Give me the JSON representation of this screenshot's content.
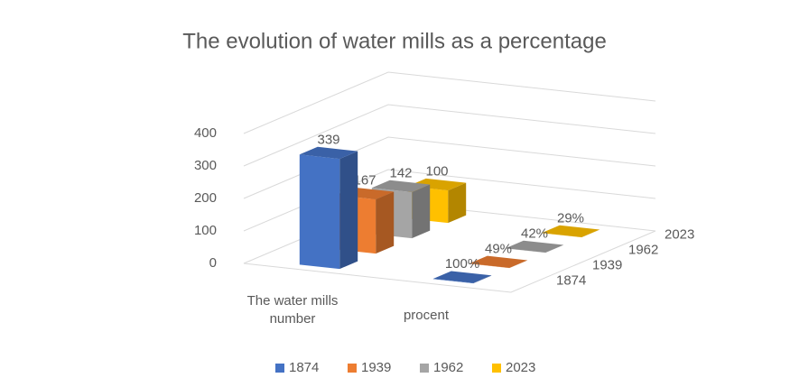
{
  "chart_data": {
    "type": "bar3d",
    "title": "The evolution of water mills as a percentage",
    "categories": [
      "The water mills number",
      "procent"
    ],
    "series": [
      {
        "name": "1874",
        "color": "#4472c4",
        "values": [
          339,
          1
        ],
        "value_labels": [
          "339",
          "100%"
        ]
      },
      {
        "name": "1939",
        "color": "#ed7d31",
        "values": [
          167,
          0.49
        ],
        "value_labels": [
          "167",
          "49%"
        ]
      },
      {
        "name": "1962",
        "color": "#a5a5a5",
        "values": [
          142,
          0.42
        ],
        "value_labels": [
          "142",
          "42%"
        ]
      },
      {
        "name": "2023",
        "color": "#ffc000",
        "values": [
          100,
          0.29
        ],
        "value_labels": [
          "100",
          "29%"
        ]
      }
    ],
    "ylim": [
      0,
      400
    ],
    "yticks": [
      0,
      100,
      200,
      300,
      400
    ],
    "grid": true,
    "legend": "bottom"
  }
}
